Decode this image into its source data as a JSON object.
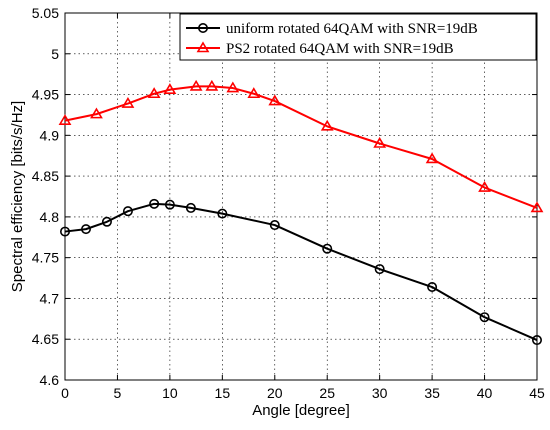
{
  "chart_data": {
    "type": "line",
    "xlabel": "Angle [degree]",
    "ylabel": "Spectral efficiency   [bits/s/Hz]",
    "xlim": [
      0,
      45
    ],
    "ylim": [
      4.6,
      5.05
    ],
    "xticks": [
      "0",
      "5",
      "10",
      "15",
      "20",
      "25",
      "30",
      "35",
      "40",
      "45"
    ],
    "yticks": [
      "4.6",
      "4.65",
      "4.7",
      "4.75",
      "4.8",
      "4.85",
      "4.9",
      "4.95",
      "5",
      "5.05"
    ],
    "grid": true,
    "legend_position": "top-right",
    "series": [
      {
        "name": "uniform rotated 64QAM with SNR=19dB",
        "color": "#000000",
        "marker": "circle",
        "x": [
          0,
          2,
          4,
          6,
          8.5,
          10,
          12,
          15,
          20,
          25,
          30,
          35,
          40,
          45
        ],
        "y": [
          4.782,
          4.785,
          4.794,
          4.807,
          4.816,
          4.815,
          4.811,
          4.804,
          4.79,
          4.761,
          4.736,
          4.714,
          4.677,
          4.649
        ]
      },
      {
        "name": "PS2 rotated 64QAM with SNR=19dB",
        "color": "#ff0000",
        "marker": "triangle",
        "x": [
          0,
          3,
          6,
          8.5,
          10,
          12.5,
          14,
          16,
          18,
          20,
          25,
          30,
          35,
          40,
          45
        ],
        "y": [
          4.918,
          4.926,
          4.939,
          4.951,
          4.956,
          4.96,
          4.96,
          4.958,
          4.951,
          4.942,
          4.911,
          4.89,
          4.871,
          4.836,
          4.811
        ]
      }
    ]
  }
}
